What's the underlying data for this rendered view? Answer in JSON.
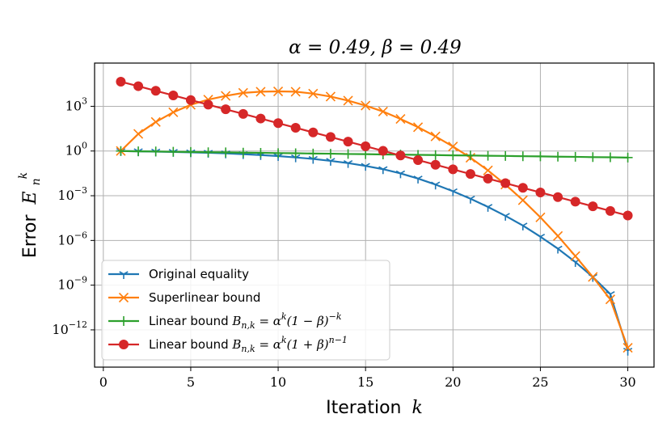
{
  "chart_data": {
    "type": "line",
    "title": "α = 0.49, β = 0.49",
    "xlabel": "Iteration k",
    "ylabel": "Error E_n^k",
    "xlim": [
      -0.5,
      31.5
    ],
    "ylim_log10": [
      -14.5,
      5.9
    ],
    "yscale": "log",
    "grid": true,
    "legend_position": "lower-left",
    "x_ticks": [
      0,
      5,
      10,
      15,
      20,
      25,
      30
    ],
    "y_ticks": [
      {
        "exp": 3,
        "label": "10^3"
      },
      {
        "exp": 0,
        "label": "10^0"
      },
      {
        "exp": -3,
        "label": "10^-3"
      },
      {
        "exp": -6,
        "label": "10^-6"
      },
      {
        "exp": -9,
        "label": "10^-9"
      },
      {
        "exp": -12,
        "label": "10^-12"
      }
    ],
    "series": [
      {
        "name": "Original equality",
        "color": "#1f77b4",
        "marker": "tri_down",
        "x": [
          1,
          2,
          3,
          4,
          5,
          6,
          7,
          8,
          9,
          10,
          11,
          12,
          13,
          14,
          15,
          16,
          17,
          18,
          19,
          20,
          21,
          22,
          23,
          24,
          25,
          26,
          27,
          28,
          29,
          30
        ],
        "log10_y": [
          0,
          -0.02,
          -0.04,
          -0.06,
          -0.09,
          -0.12,
          -0.16,
          -0.21,
          -0.27,
          -0.34,
          -0.43,
          -0.53,
          -0.66,
          -0.81,
          -1.0,
          -1.22,
          -1.5,
          -1.85,
          -2.25,
          -2.7,
          -3.2,
          -3.75,
          -4.35,
          -5.0,
          -5.75,
          -6.55,
          -7.45,
          -8.45,
          -9.6,
          -13.4
        ]
      },
      {
        "name": "Superlinear bound",
        "color": "#ff7f0e",
        "marker": "x",
        "x": [
          1,
          2,
          3,
          4,
          5,
          6,
          7,
          8,
          9,
          10,
          11,
          12,
          13,
          14,
          15,
          16,
          17,
          18,
          19,
          20,
          21,
          22,
          23,
          24,
          25,
          26,
          27,
          28,
          29,
          30
        ],
        "log10_y": [
          0,
          1.15,
          1.95,
          2.6,
          3.1,
          3.45,
          3.7,
          3.9,
          3.98,
          4.0,
          3.98,
          3.85,
          3.65,
          3.38,
          3.05,
          2.65,
          2.15,
          1.6,
          0.98,
          0.3,
          -0.45,
          -1.3,
          -2.25,
          -3.3,
          -4.45,
          -5.7,
          -7.05,
          -8.45,
          -9.95,
          -13.2
        ]
      },
      {
        "name": "Linear bound B_{n,k} = α^k(1 − β)^{−k}",
        "color": "#2ca02c",
        "marker": "plus",
        "x": [
          1,
          2,
          3,
          4,
          5,
          6,
          7,
          8,
          9,
          10,
          11,
          12,
          13,
          14,
          15,
          16,
          17,
          18,
          19,
          20,
          21,
          22,
          23,
          24,
          25,
          26,
          27,
          28,
          29,
          30
        ],
        "log10_y": [
          0,
          -0.02,
          -0.03,
          -0.05,
          -0.06,
          -0.08,
          -0.09,
          -0.11,
          -0.12,
          -0.14,
          -0.15,
          -0.17,
          -0.18,
          -0.2,
          -0.21,
          -0.23,
          -0.24,
          -0.26,
          -0.27,
          -0.29,
          -0.3,
          -0.32,
          -0.33,
          -0.35,
          -0.36,
          -0.38,
          -0.39,
          -0.41,
          -0.42,
          -0.44
        ]
      },
      {
        "name": "Linear bound B_{n,k} = α^k(1 + β)^{n−1}",
        "color": "#d62728",
        "marker": "circle",
        "x": [
          1,
          2,
          3,
          4,
          5,
          6,
          7,
          8,
          9,
          10,
          11,
          12,
          13,
          14,
          15,
          16,
          17,
          18,
          19,
          20,
          21,
          22,
          23,
          24,
          25,
          26,
          27,
          28,
          29,
          30
        ],
        "log10_y": [
          4.65,
          4.35,
          4.04,
          3.73,
          3.42,
          3.11,
          2.8,
          2.49,
          2.18,
          1.87,
          1.56,
          1.25,
          0.94,
          0.63,
          0.32,
          0.01,
          -0.3,
          -0.61,
          -0.92,
          -1.23,
          -1.54,
          -1.85,
          -2.16,
          -2.47,
          -2.78,
          -3.09,
          -3.4,
          -3.71,
          -4.02,
          -4.33
        ]
      }
    ]
  },
  "labels": {
    "title_alpha": "α = 0.49, β = 0.49",
    "xlabel_word": "Iteration",
    "xlabel_var": "k",
    "ylabel_word": "Error",
    "ylabel_var": "E",
    "ylabel_sub": "n",
    "ylabel_sup": "k"
  },
  "legend": [
    {
      "prefix": "Original equality",
      "math": ""
    },
    {
      "prefix": "Superlinear bound",
      "math": ""
    },
    {
      "prefix": "Linear bound ",
      "math": "B_{n,k} = α^k(1 − β)^{−k}"
    },
    {
      "prefix": "Linear bound ",
      "math": "B_{n,k} = α^k(1 + β)^{n−1}"
    }
  ]
}
